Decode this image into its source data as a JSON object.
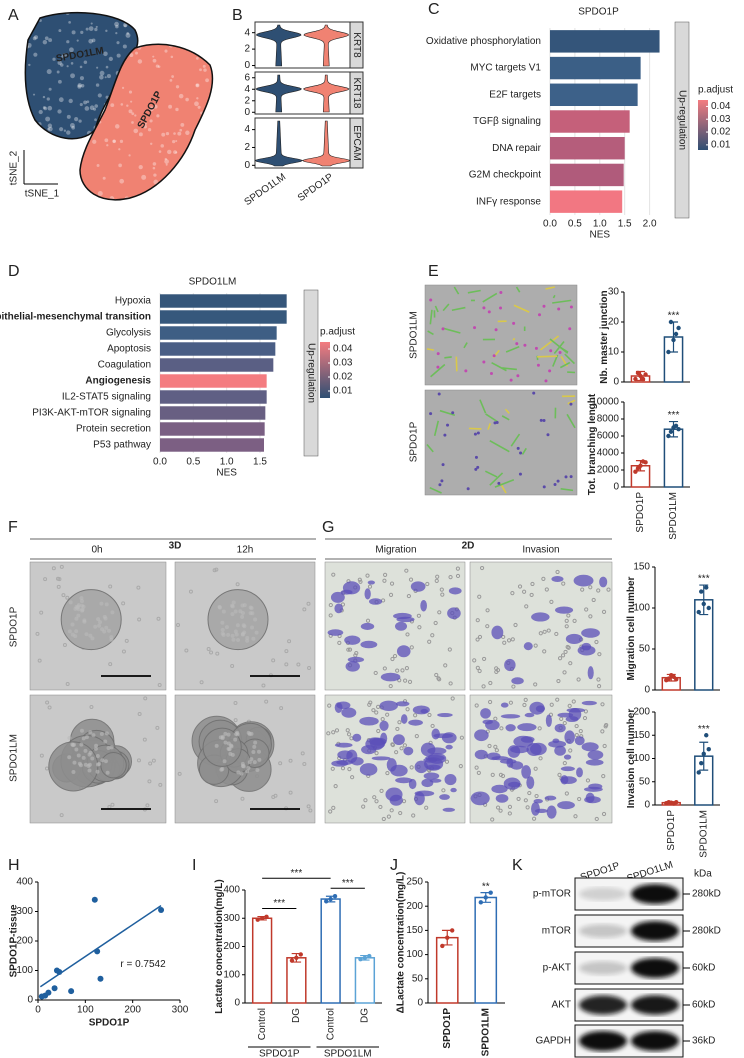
{
  "panel_labels": [
    "A",
    "B",
    "C",
    "D",
    "E",
    "F",
    "G",
    "H",
    "I",
    "J",
    "K"
  ],
  "tsne": {
    "clusters": [
      {
        "name": "SPDO1LM",
        "color": "#2e4f73"
      },
      {
        "name": "SPDO1P",
        "color": "#f08272"
      }
    ],
    "x_label": "tSNE_1",
    "y_label": "tSNE_2"
  },
  "images": {
    "E": {
      "rows": [
        "SPDO1LM",
        "SPDO1P"
      ]
    },
    "F": {
      "title": "3D",
      "columns": [
        "0h",
        "12h"
      ],
      "rows": [
        "SPDO1P",
        "SPDO1LM"
      ]
    },
    "G": {
      "title": "2D",
      "columns": [
        "Migration",
        "Invasion"
      ]
    }
  },
  "western_blot": {
    "lanes": [
      "SPDO1P",
      "SPDO1LM"
    ],
    "unit": "kDa",
    "proteins": [
      {
        "name": "p-mTOR",
        "size": "280kD"
      },
      {
        "name": "mTOR",
        "size": "280kD"
      },
      {
        "name": "p-AKT",
        "size": "60kD"
      },
      {
        "name": "AKT",
        "size": "60kD"
      },
      {
        "name": "GAPDH",
        "size": "36kD"
      }
    ]
  },
  "chart_data": [
    {
      "type": "violin",
      "categories": [
        "SPDO1LM",
        "SPDO1P"
      ],
      "colors": [
        "#2e4f73",
        "#f08272"
      ],
      "facets": [
        {
          "name": "KRT8",
          "ylim": [
            -0.3,
            5.3
          ],
          "yticks": [
            0,
            2,
            4
          ]
        },
        {
          "name": "KRT18",
          "ylim": [
            -0.3,
            7
          ],
          "yticks": [
            0,
            2,
            4,
            6
          ]
        },
        {
          "name": "EPCAM",
          "ylim": [
            -0.3,
            5.3
          ],
          "yticks": [
            0,
            2,
            4
          ]
        }
      ]
    },
    {
      "type": "gsea_bar",
      "title": "SPDO1P",
      "categories": [
        "Oxidative phosphorylation",
        "MYC targets V1",
        "E2F targets",
        "TGFβ signaling",
        "DNA repair",
        "G2M checkpoint",
        "INFγ response"
      ],
      "values": [
        2.2,
        1.82,
        1.76,
        1.6,
        1.5,
        1.48,
        1.45
      ],
      "colors": [
        "#34557a",
        "#3b5f86",
        "#3d6189",
        "#c5607a",
        "#b55d7b",
        "#b05b7b",
        "#f27782"
      ],
      "xlim": [
        -0.1,
        2.45
      ],
      "xticks": [
        {
          "value": 0,
          "label": "0.0"
        },
        0.5,
        {
          "value": 1,
          "label": "1.0"
        },
        1.5,
        {
          "value": 2,
          "label": "2.0"
        }
      ],
      "x_label": "NES",
      "strip": "Up-regulation",
      "colorbar": {
        "title": "p.adjust",
        "clim": [
          0.006,
          0.045
        ],
        "ticks": [
          0.04,
          0.03,
          0.02,
          0.01
        ],
        "colors": [
          "#2e4f73",
          "#f47c80"
        ]
      },
      "grid": true
    },
    {
      "type": "gsea_bar",
      "title": "SPDO1LM",
      "categories": [
        "Hypoxia",
        "Epithelial-mesenchymal transition",
        "Glycolysis",
        "Apoptosis",
        "Coagulation",
        "Angiogenesis",
        "IL2-STAT5 signaling",
        "PI3K-AKT-mTOR signaling",
        "Protein secretion",
        "P53 pathway"
      ],
      "values": [
        1.9,
        1.9,
        1.75,
        1.73,
        1.7,
        1.6,
        1.6,
        1.58,
        1.57,
        1.56
      ],
      "colors": [
        "#35567a",
        "#36587c",
        "#3e5e84",
        "#4a5e85",
        "#5a5f84",
        "#f47c80",
        "#5f5f84",
        "#685f82",
        "#7a5f83",
        "#7c5f83"
      ],
      "highlight": {
        "color": "#b22222",
        "indices": [
          1,
          5
        ]
      },
      "xlim": [
        -0.075,
        1.95
      ],
      "xticks": [
        {
          "value": 0,
          "label": "0.0"
        },
        0.5,
        {
          "value": 1,
          "label": "1.0"
        },
        1.5
      ],
      "x_label": "NES",
      "strip": "Up-regulation",
      "colorbar": {
        "title": "p.adjust",
        "clim": [
          0.005,
          0.045
        ],
        "ticks": [
          0.04,
          0.03,
          0.02,
          0.01
        ],
        "colors": [
          "#2e4f73",
          "#f47c80"
        ]
      },
      "grid": true
    },
    {
      "type": "bar",
      "categories": [
        null,
        null
      ],
      "values": [
        2,
        15
      ],
      "errors": [
        1.5,
        5
      ],
      "points": [
        [
          1,
          3,
          2,
          1,
          2.5
        ],
        [
          10,
          20,
          14,
          16,
          18
        ]
      ],
      "colors": [
        "#c0392b",
        "#1f4e79"
      ],
      "ylim": [
        0,
        30
      ],
      "yticks": [
        0,
        10,
        20,
        30
      ],
      "y_label": "Nb. master junction",
      "annotations": [
        {
          "label": "***",
          "bar": 1
        }
      ]
    },
    {
      "type": "bar",
      "categories": [
        "SPDO1P",
        "SPDO1LM"
      ],
      "values": [
        2500,
        6800
      ],
      "errors": [
        600,
        900
      ],
      "points": [
        [
          1800,
          2200,
          2500,
          3000,
          2900
        ],
        [
          6000,
          6500,
          7000,
          7200,
          6800
        ]
      ],
      "colors": [
        "#c0392b",
        "#1f4e79"
      ],
      "ylim": [
        0,
        10000
      ],
      "yticks": [
        0,
        2000,
        4000,
        6000,
        8000,
        10000
      ],
      "y_label": "Tot. branching lenght",
      "annotations": [
        {
          "label": "***",
          "bar": 1
        }
      ]
    },
    {
      "type": "bar",
      "categories": [
        null,
        null
      ],
      "values": [
        15,
        110
      ],
      "errors": [
        4,
        18
      ],
      "points": [
        [
          12,
          14,
          18,
          16,
          13
        ],
        [
          95,
          120,
          105,
          125,
          100
        ]
      ],
      "colors": [
        "#c0392b",
        "#1f4e79"
      ],
      "ylim": [
        0,
        150
      ],
      "yticks": [
        0,
        50,
        100,
        150
      ],
      "y_label": "Migration cell number",
      "annotations": [
        {
          "label": "***",
          "bar": 1
        }
      ]
    },
    {
      "type": "bar",
      "categories": [
        "SPDO1P",
        "SPDO1LM"
      ],
      "values": [
        5,
        105
      ],
      "errors": [
        2,
        30
      ],
      "points": [
        [
          4,
          6,
          5,
          3,
          6
        ],
        [
          70,
          90,
          110,
          150,
          120
        ]
      ],
      "colors": [
        "#c0392b",
        "#1f4e79"
      ],
      "ylim": [
        0,
        200
      ],
      "yticks": [
        0,
        50,
        100,
        150,
        200
      ],
      "y_label": "Invasion cell number",
      "annotations": [
        {
          "label": "***",
          "bar": 1
        }
      ]
    },
    {
      "type": "scatter",
      "x": [
        8,
        15,
        22,
        35,
        40,
        45,
        70,
        120,
        125,
        132,
        260
      ],
      "y": [
        12,
        15,
        25,
        40,
        100,
        95,
        30,
        340,
        165,
        72,
        305
      ],
      "color": "#1f5f9e",
      "xlim": [
        0,
        300
      ],
      "ylim": [
        0,
        400
      ],
      "xticks": [
        0,
        100,
        200,
        300
      ],
      "yticks": [
        0,
        100,
        200,
        300,
        400
      ],
      "x_label": "SPDO1P",
      "y_label": "SPDO1P-tissue",
      "trendline": {
        "x": [
          5,
          260
        ],
        "y": [
          45,
          320
        ]
      },
      "annotation": "r = 0.7542"
    },
    {
      "type": "bar",
      "categories": [
        "Control",
        "DG",
        "Control",
        "DG"
      ],
      "groups": [
        "SPDO1P",
        "SPDO1LM"
      ],
      "values": [
        300,
        160,
        368,
        160
      ],
      "errors": [
        6,
        15,
        10,
        8
      ],
      "points": [
        [
          295,
          300,
          305
        ],
        [
          150,
          160,
          172
        ],
        [
          360,
          368,
          378
        ],
        [
          155,
          160,
          166
        ]
      ],
      "colors": [
        "#c0392b",
        "#c0392b",
        "#2e6db4",
        "#5ba3d6"
      ],
      "ylim": [
        0,
        400
      ],
      "yticks": [
        0,
        100,
        200,
        300,
        400
      ],
      "y_label": "Lactate concentration(mg/L)",
      "annotations": [
        {
          "label": "***",
          "from": 0,
          "to": 1
        },
        {
          "label": "***",
          "from": 0,
          "to": 2
        },
        {
          "label": "***",
          "from": 2,
          "to": 3
        }
      ]
    },
    {
      "type": "bar",
      "categories": [
        "SPDO1P",
        "SPDO1LM"
      ],
      "values": [
        135,
        218
      ],
      "errors": [
        15,
        10
      ],
      "points": [
        [
          118,
          135,
          150
        ],
        [
          208,
          218,
          228
        ]
      ],
      "colors": [
        "#c0392b",
        "#2e6db4"
      ],
      "ylim": [
        0,
        250
      ],
      "yticks": [
        0,
        50,
        100,
        150,
        200,
        250
      ],
      "y_label": "ΔLactate concentration(mg/L)",
      "annotations": [
        {
          "label": "**",
          "bar": 1
        }
      ]
    }
  ]
}
